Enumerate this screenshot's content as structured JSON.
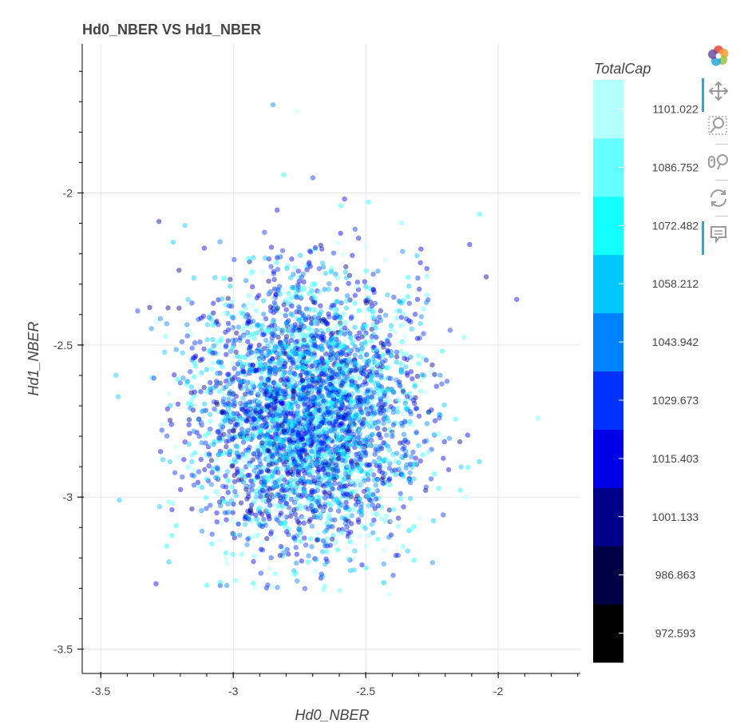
{
  "chart_data": {
    "type": "scatter",
    "title": "Hd0_NBER VS Hd1_NBER",
    "xlabel": "Hd0_NBER",
    "ylabel": "Hd1_NBER",
    "xlim": [
      -3.57,
      -1.69
    ],
    "ylim": [
      -3.58,
      -1.51
    ],
    "x_ticks": [
      -3.5,
      -3,
      -2.5,
      -2
    ],
    "x_tick_labels": [
      "-3.5",
      "-3",
      "-2.5",
      "-2"
    ],
    "y_ticks": [
      -3.5,
      -3,
      -2.5,
      -2
    ],
    "y_tick_labels": [
      "-3.5",
      "-3",
      "-2.5",
      "-2"
    ],
    "grid": true,
    "point_distribution": {
      "count": 4000,
      "x_mean": -2.72,
      "x_std": 0.21,
      "y_mean": -2.72,
      "y_std": 0.22,
      "seed": 7,
      "outliers": [
        [
          -2.85,
          -1.71
        ],
        [
          -2.76,
          -1.73
        ],
        [
          -2.81,
          -1.94
        ],
        [
          -2.7,
          -1.95
        ],
        [
          -2.58,
          -2.02
        ],
        [
          -2.49,
          -2.03
        ],
        [
          -1.85,
          -2.74
        ],
        [
          -3.43,
          -3.01
        ],
        [
          -1.93,
          -2.35
        ],
        [
          -3.1,
          -3.29
        ],
        [
          -2.07,
          -2.07
        ]
      ]
    },
    "color_scale": {
      "title": "TotalCap",
      "colors": [
        "#000000",
        "#000045",
        "#00008b",
        "#0000e6",
        "#0032ff",
        "#0082ff",
        "#00c8ff",
        "#14ffff",
        "#64ffff",
        "#b4ffff"
      ],
      "tick_values": [
        "972.593",
        "986.863",
        "1001.133",
        "1015.403",
        "1029.673",
        "1043.942",
        "1058.212",
        "1072.482",
        "1086.752",
        "1101.022"
      ]
    }
  },
  "toolbar": {
    "logo_icon": "bokeh-logo-icon",
    "tools": [
      {
        "name": "pan-icon",
        "active": true
      },
      {
        "name": "box-zoom-icon",
        "active": false
      },
      {
        "name": "wheel-zoom-icon",
        "active": false
      },
      {
        "name": "reset-icon",
        "active": false
      },
      {
        "name": "hover-icon",
        "active": true
      }
    ]
  }
}
